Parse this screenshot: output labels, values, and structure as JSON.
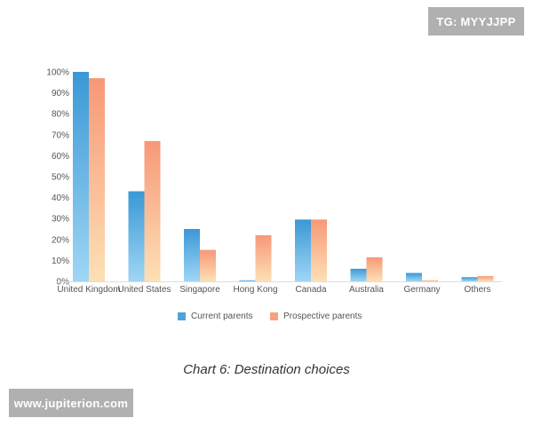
{
  "watermark": {
    "tg": "TG: MYYJJPP",
    "site": "www.jupiterion.com"
  },
  "caption": "Chart 6: Destination choices",
  "chart_data": {
    "type": "bar",
    "categories": [
      "United Kingdom",
      "United States",
      "Singapore",
      "Hong Kong",
      "Canada",
      "Australia",
      "Germany",
      "Others"
    ],
    "series": [
      {
        "name": "Current parents",
        "values": [
          100,
          43,
          25,
          0.5,
          29.5,
          6,
          4,
          2
        ],
        "color": "#4fa3d8"
      },
      {
        "name": "Prospective parents",
        "values": [
          97,
          67,
          15,
          22,
          29.5,
          11.5,
          0.5,
          2.5
        ],
        "color": "#f7a27e"
      }
    ],
    "yticks": [
      "0%",
      "10%",
      "20%",
      "30%",
      "40%",
      "50%",
      "60%",
      "70%",
      "80%",
      "90%",
      "100%"
    ],
    "ylim": [
      0,
      100
    ],
    "grid": false,
    "legend_position": "bottom"
  }
}
